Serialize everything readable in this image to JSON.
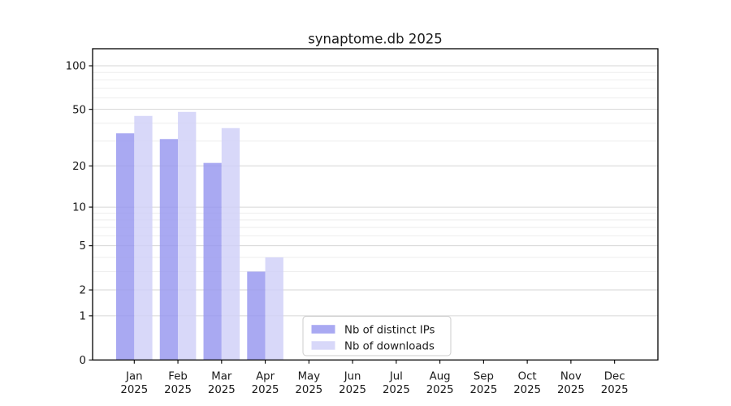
{
  "chart_data": {
    "type": "bar",
    "title": "synaptome.db 2025",
    "x_axis": {
      "months": [
        "Jan",
        "Feb",
        "Mar",
        "Apr",
        "May",
        "Jun",
        "Jul",
        "Aug",
        "Sep",
        "Oct",
        "Nov",
        "Dec"
      ],
      "year_label": "2025"
    },
    "y_axis": {
      "scale": "log1p",
      "major_ticks": [
        0,
        1,
        2,
        5,
        10,
        20,
        50,
        100
      ],
      "minor_gridlines": [
        3,
        4,
        6,
        7,
        8,
        9,
        30,
        40,
        60,
        70,
        80,
        90
      ],
      "ylim": [
        0,
        130
      ]
    },
    "grid": true,
    "legend": {
      "position": "lower center"
    },
    "series": [
      {
        "name": "Nb of distinct IPs",
        "color": "#9696ef",
        "opacity": 0.82,
        "values": [
          34,
          31,
          21,
          3,
          null,
          null,
          null,
          null,
          null,
          null,
          null,
          null
        ]
      },
      {
        "name": "Nb of downloads",
        "color": "#cfcff8",
        "opacity": 0.82,
        "values": [
          45,
          48,
          37,
          4,
          null,
          null,
          null,
          null,
          null,
          null,
          null,
          null
        ]
      }
    ],
    "colors": {
      "grid_major": "#d6d6d6",
      "grid_minor": "#eeeeee",
      "axis": "#000000",
      "text": "#1a1a1a",
      "legend_border": "#cccccc",
      "background": "#ffffff"
    }
  }
}
